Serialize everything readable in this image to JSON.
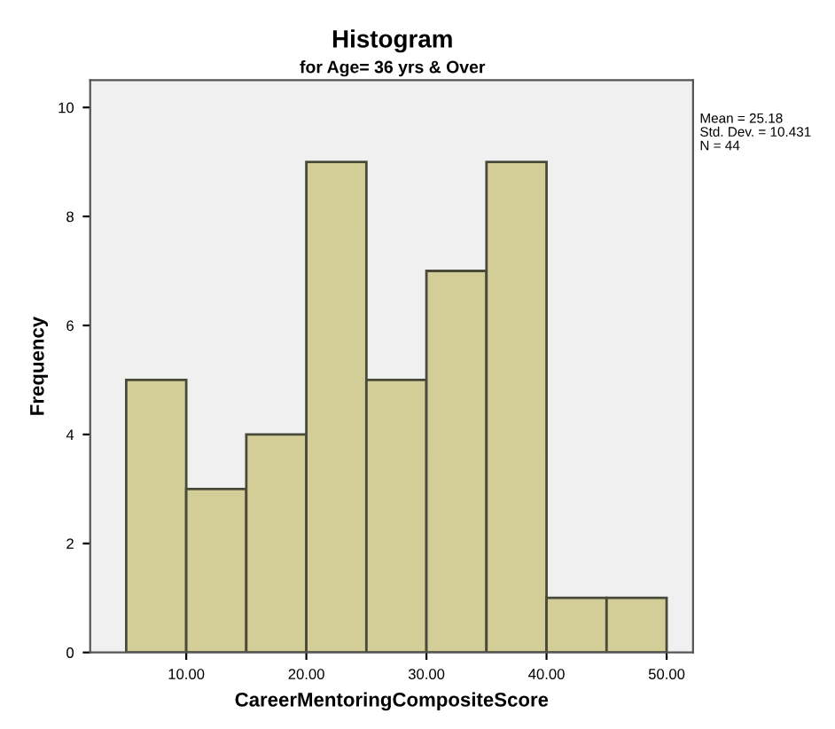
{
  "chart_data": {
    "type": "histogram",
    "title": "Histogram",
    "subtitle": "for Age= 36 yrs & Over",
    "xlabel": "CareerMentoringCompositeScore",
    "ylabel": "Frequency",
    "bins": [
      5,
      10,
      15,
      20,
      25,
      30,
      35,
      40,
      45,
      50
    ],
    "values": [
      5,
      3,
      4,
      9,
      5,
      7,
      9,
      1,
      1
    ],
    "color": "#d3ce97",
    "xlim": [
      2,
      52.2
    ],
    "ylim": [
      0,
      10.5
    ],
    "xticks": [
      {
        "value": 10,
        "label": "10.00"
      },
      {
        "value": 20,
        "label": "20.00"
      },
      {
        "value": 30,
        "label": "30.00"
      },
      {
        "value": 40,
        "label": "40.00"
      },
      {
        "value": 50,
        "label": "50.00"
      }
    ],
    "yticks": [
      0,
      2,
      4,
      6,
      8,
      10
    ],
    "annotations": [
      "Mean = 25.18\nStd. Dev. = 10.431\nN = 44"
    ],
    "grid": false,
    "legend": false
  }
}
